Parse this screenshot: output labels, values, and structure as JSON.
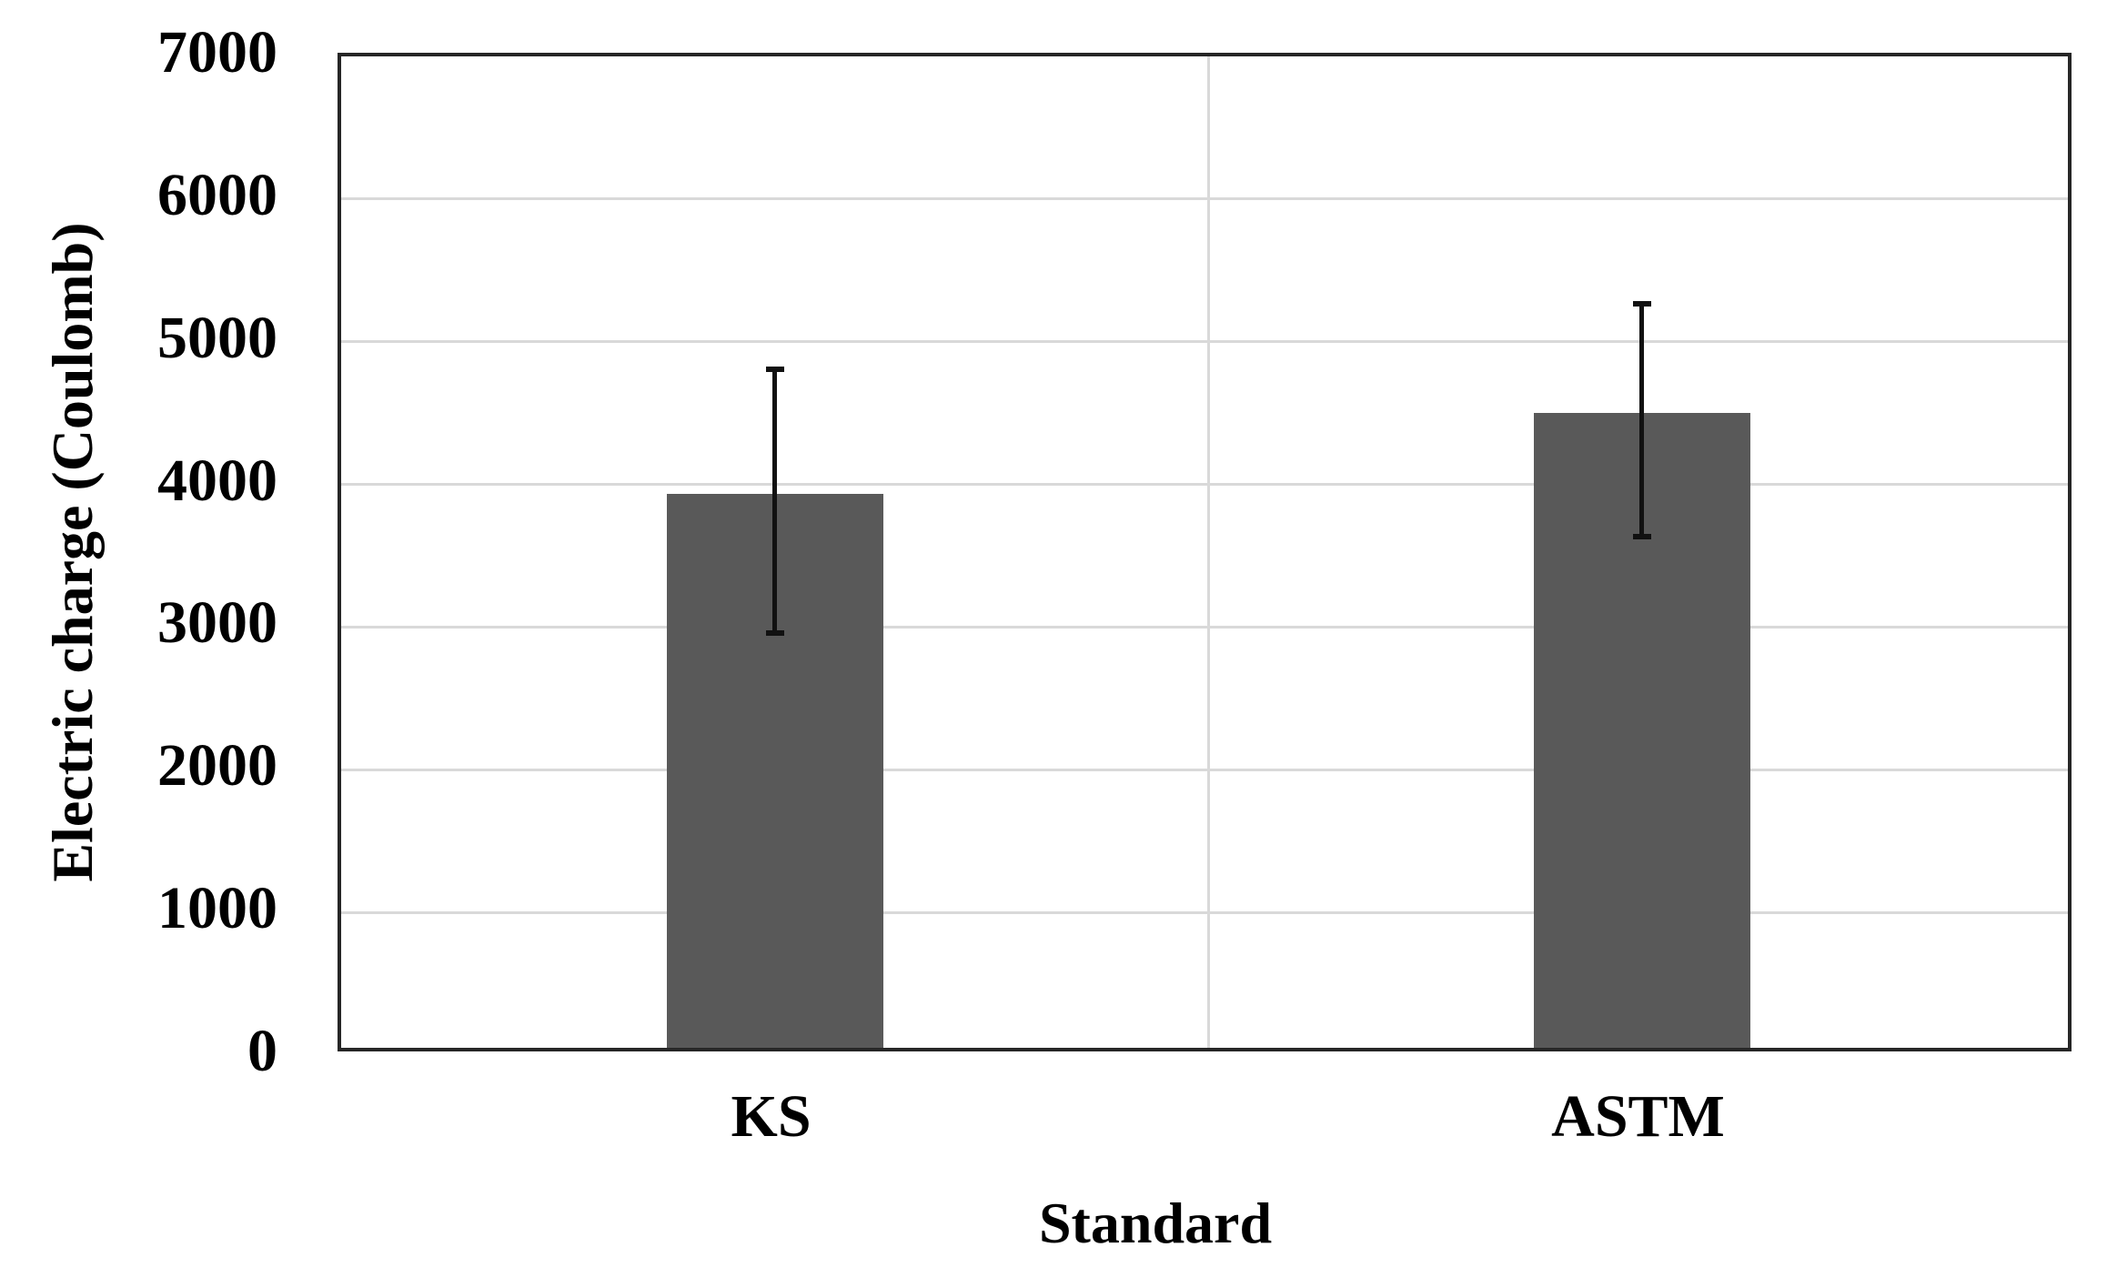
{
  "chart_data": {
    "type": "bar",
    "categories": [
      "KS",
      "ASTM"
    ],
    "values": [
      3880,
      4450
    ],
    "error_bars": [
      925,
      815
    ],
    "error_bar_upper": [
      4805,
      5265
    ],
    "error_bar_lower": [
      2955,
      3635
    ],
    "title": "",
    "xlabel": "Standard",
    "ylabel": "Electric charge (Coulomb)",
    "ylim": [
      0,
      7000
    ],
    "ytick_interval": 1000,
    "yticks": [
      0,
      1000,
      2000,
      3000,
      4000,
      5000,
      6000,
      7000
    ],
    "legend": "none",
    "grid": "horizontal gridlines every 1000; one vertical category divider at plot center",
    "colors": {
      "bar_fill": "#595959",
      "gridline": "#d9d9d9",
      "plot_border": "#262626",
      "error_bar": "#111111",
      "text": "#000000",
      "background": "#ffffff"
    }
  }
}
